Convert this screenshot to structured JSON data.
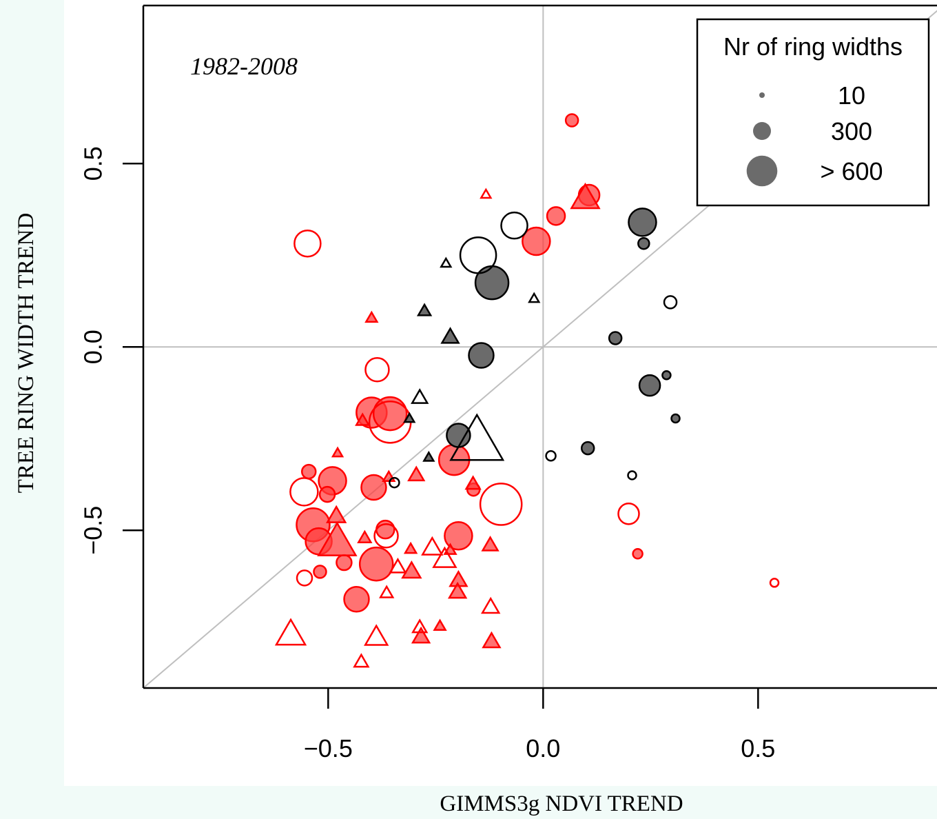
{
  "chart_data": {
    "type": "scatter",
    "annotation": "1982-2008",
    "x_label": "GIMMS3g NDVI TREND",
    "y_label": "TREE RING WIDTH TREND",
    "xlim": [
      -0.93,
      0.93
    ],
    "ylim": [
      -0.93,
      0.93
    ],
    "xticks": [
      {
        "value": -0.5,
        "label": "−0.5"
      },
      {
        "value": 0,
        "label": "0.0"
      },
      0.5
    ],
    "yticks": [
      {
        "value": -0.5,
        "label": "−0.5"
      },
      {
        "value": 0,
        "label": "0.0"
      },
      0.5
    ],
    "zero_lines": true,
    "identity_line": true,
    "legend": {
      "title": "Nr of ring widths",
      "position": "top-right",
      "sizes": [
        10,
        300,
        {
          "value": 600,
          "label": "> 600"
        }
      ]
    },
    "series": [
      {
        "color": "#ff0000",
        "marker": "circle",
        "filled": true,
        "x": [
          0.067,
          0.107,
          0.03,
          -0.016,
          -0.545,
          -0.49,
          -0.502,
          -0.394,
          -0.399,
          -0.356,
          -0.535,
          -0.522,
          -0.519,
          -0.463,
          -0.388,
          -0.367,
          -0.434,
          -0.207,
          -0.197,
          -0.162,
          0.22
        ],
        "y": [
          0.618,
          0.414,
          0.357,
          0.288,
          -0.34,
          -0.365,
          -0.402,
          -0.383,
          -0.179,
          -0.182,
          -0.485,
          -0.53,
          -0.613,
          -0.588,
          -0.592,
          -0.498,
          -0.688,
          -0.308,
          -0.515,
          -0.389,
          -0.564
        ],
        "sizes": [
          171,
          365,
          300,
          526,
          203,
          526,
          235,
          461,
          590,
          655,
          655,
          494,
          171,
          235,
          655,
          300,
          461,
          590,
          526,
          171,
          106
        ]
      },
      {
        "color": "#ff0000",
        "marker": "circle",
        "filled": false,
        "x": [
          -0.548,
          -0.386,
          -0.356,
          -0.556,
          -0.365,
          -0.555,
          -0.098,
          0.199,
          0.538
        ],
        "y": [
          0.282,
          -0.062,
          -0.205,
          -0.395,
          -0.515,
          -0.63,
          -0.429,
          -0.455,
          -0.643
        ],
        "sizes": [
          494,
          429,
          850,
          526,
          429,
          235,
          850,
          365,
          74
        ]
      },
      {
        "color": "#ff0000",
        "marker": "triangle",
        "filled": true,
        "x": [
          0.098,
          -0.399,
          -0.478,
          -0.42,
          -0.295,
          -0.359,
          -0.481,
          -0.479,
          -0.415,
          -0.308,
          -0.306,
          -0.216,
          -0.197,
          -0.199,
          -0.123,
          -0.163,
          -0.284,
          -0.24,
          -0.12
        ],
        "y": [
          0.4,
          0.077,
          -0.291,
          -0.203,
          -0.352,
          -0.357,
          -0.464,
          -0.539,
          -0.523,
          -0.553,
          -0.615,
          -0.556,
          -0.639,
          -0.671,
          -0.543,
          -0.376,
          -0.793,
          -0.763,
          -0.806
        ],
        "sizes": [
          526,
          139,
          106,
          171,
          235,
          139,
          300,
          752,
          171,
          139,
          300,
          139,
          268,
          268,
          235,
          203,
          268,
          139,
          268
        ]
      },
      {
        "color": "#ff0000",
        "marker": "triangle",
        "filled": false,
        "x": [
          -0.133,
          -0.258,
          -0.229,
          -0.338,
          -0.364,
          -0.122,
          -0.287,
          -0.388,
          -0.587,
          -0.423
        ],
        "y": [
          0.414,
          -0.551,
          -0.583,
          -0.603,
          -0.673,
          -0.712,
          -0.767,
          -0.795,
          -0.789,
          -0.861
        ],
        "sizes": [
          106,
          333,
          397,
          235,
          171,
          268,
          203,
          397,
          558,
          203
        ]
      },
      {
        "color": "#000000",
        "marker": "circle",
        "filled": true,
        "x": [
          0.231,
          0.234,
          -0.119,
          -0.144,
          0.168,
          0.248,
          0.287,
          0.308,
          -0.197,
          0.104
        ],
        "y": [
          0.34,
          0.282,
          0.175,
          -0.023,
          0.024,
          -0.105,
          -0.077,
          -0.195,
          -0.241,
          -0.276
        ],
        "sizes": [
          526,
          139,
          655,
          461,
          171,
          365,
          74,
          74,
          429,
          171
        ]
      },
      {
        "color": "#000000",
        "marker": "circle",
        "filled": false,
        "x": [
          -0.067,
          -0.151,
          0.296,
          0.018,
          0.207,
          -0.346
        ],
        "y": [
          0.331,
          0.25,
          0.122,
          -0.297,
          -0.35,
          -0.37
        ],
        "sizes": [
          494,
          720,
          171,
          106,
          74,
          106
        ]
      },
      {
        "color": "#000000",
        "marker": "triangle",
        "filled": true,
        "x": [
          -0.276,
          -0.216,
          -0.311,
          -0.266
        ],
        "y": [
          0.096,
          0.024,
          -0.197,
          -0.303
        ],
        "sizes": [
          171,
          268,
          106,
          106
        ]
      },
      {
        "color": "#000000",
        "marker": "triangle",
        "filled": false,
        "x": [
          -0.226,
          -0.021,
          -0.287,
          -0.154
        ],
        "y": [
          0.226,
          0.13,
          -0.141,
          -0.267
        ],
        "sizes": [
          106,
          106,
          235,
          1100
        ]
      }
    ]
  }
}
